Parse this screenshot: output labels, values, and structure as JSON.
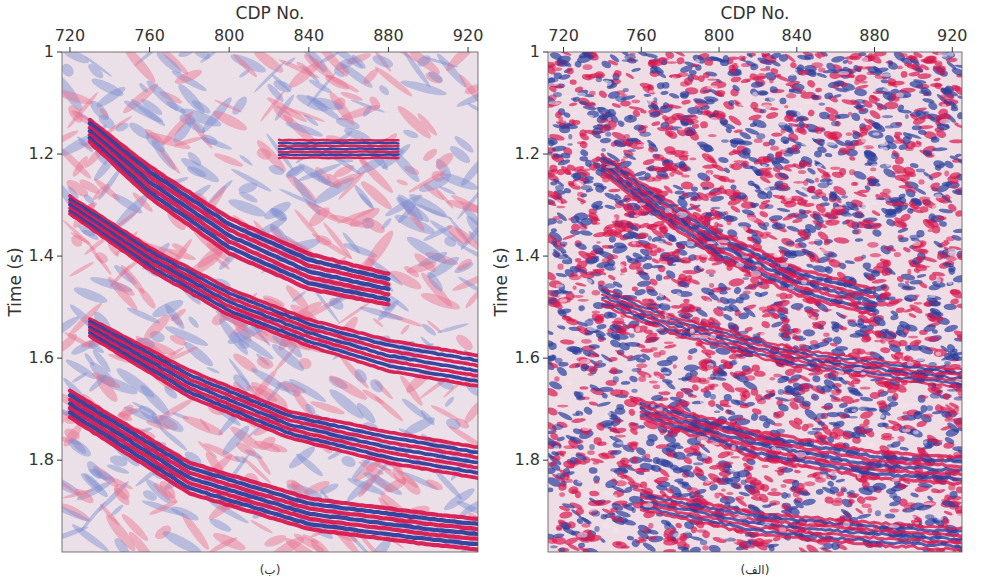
{
  "chart_data": [
    {
      "type": "seismic",
      "panel_label": "(ب)",
      "x_label": "CDP No.",
      "y_label": "Time (s)",
      "xlim": [
        716,
        925
      ],
      "ylim": [
        1,
        1.98
      ],
      "xticks": [
        720,
        760,
        800,
        840,
        880,
        920
      ],
      "yticks": [
        1,
        1.2,
        1.4,
        1.6,
        1.8
      ],
      "bands": [
        {
          "x": [
            730,
            760,
            800,
            840,
            880
          ],
          "t_top": [
            1.13,
            1.22,
            1.32,
            1.39,
            1.43
          ],
          "t_base": [
            1.18,
            1.29,
            1.4,
            1.47,
            1.5
          ]
        },
        {
          "x": [
            720,
            760,
            800,
            840,
            880,
            925
          ],
          "t_top": [
            1.28,
            1.38,
            1.46,
            1.52,
            1.56,
            1.59
          ],
          "t_base": [
            1.32,
            1.43,
            1.52,
            1.58,
            1.63,
            1.66
          ]
        },
        {
          "x": [
            730,
            780,
            830,
            880,
            925
          ],
          "t_top": [
            1.52,
            1.62,
            1.7,
            1.74,
            1.77
          ],
          "t_base": [
            1.56,
            1.68,
            1.76,
            1.81,
            1.84
          ]
        },
        {
          "x": [
            720,
            780,
            840,
            900,
            925
          ],
          "t_top": [
            1.66,
            1.8,
            1.87,
            1.9,
            1.91
          ],
          "t_base": [
            1.72,
            1.87,
            1.94,
            1.97,
            1.98
          ]
        },
        {
          "x": [
            825,
            885
          ],
          "t_top": [
            1.17,
            1.17
          ],
          "t_base": [
            1.21,
            1.21
          ]
        }
      ]
    },
    {
      "type": "seismic",
      "panel_label": "(الف)",
      "x_label": "CDP No.",
      "y_label": "Time (s)",
      "xlim": [
        712,
        925
      ],
      "ylim": [
        1,
        1.98
      ],
      "xticks": [
        720,
        760,
        800,
        840,
        880,
        920
      ],
      "yticks": [
        1,
        1.2,
        1.4,
        1.6,
        1.8
      ],
      "bands": [
        {
          "x": [
            740,
            770,
            800,
            840,
            880
          ],
          "t_top": [
            1.2,
            1.28,
            1.35,
            1.42,
            1.46
          ],
          "t_base": [
            1.24,
            1.33,
            1.41,
            1.48,
            1.52
          ]
        },
        {
          "x": [
            740,
            780,
            840,
            900,
            925
          ],
          "t_top": [
            1.46,
            1.52,
            1.58,
            1.61,
            1.62
          ],
          "t_base": [
            1.5,
            1.56,
            1.62,
            1.65,
            1.66
          ]
        },
        {
          "x": [
            760,
            820,
            880,
            925
          ],
          "t_top": [
            1.68,
            1.74,
            1.78,
            1.79
          ],
          "t_base": [
            1.72,
            1.8,
            1.84,
            1.85
          ]
        },
        {
          "x": [
            760,
            820,
            880,
            925
          ],
          "t_top": [
            1.86,
            1.9,
            1.92,
            1.93
          ],
          "t_base": [
            1.9,
            1.95,
            1.97,
            1.98
          ]
        }
      ]
    }
  ]
}
